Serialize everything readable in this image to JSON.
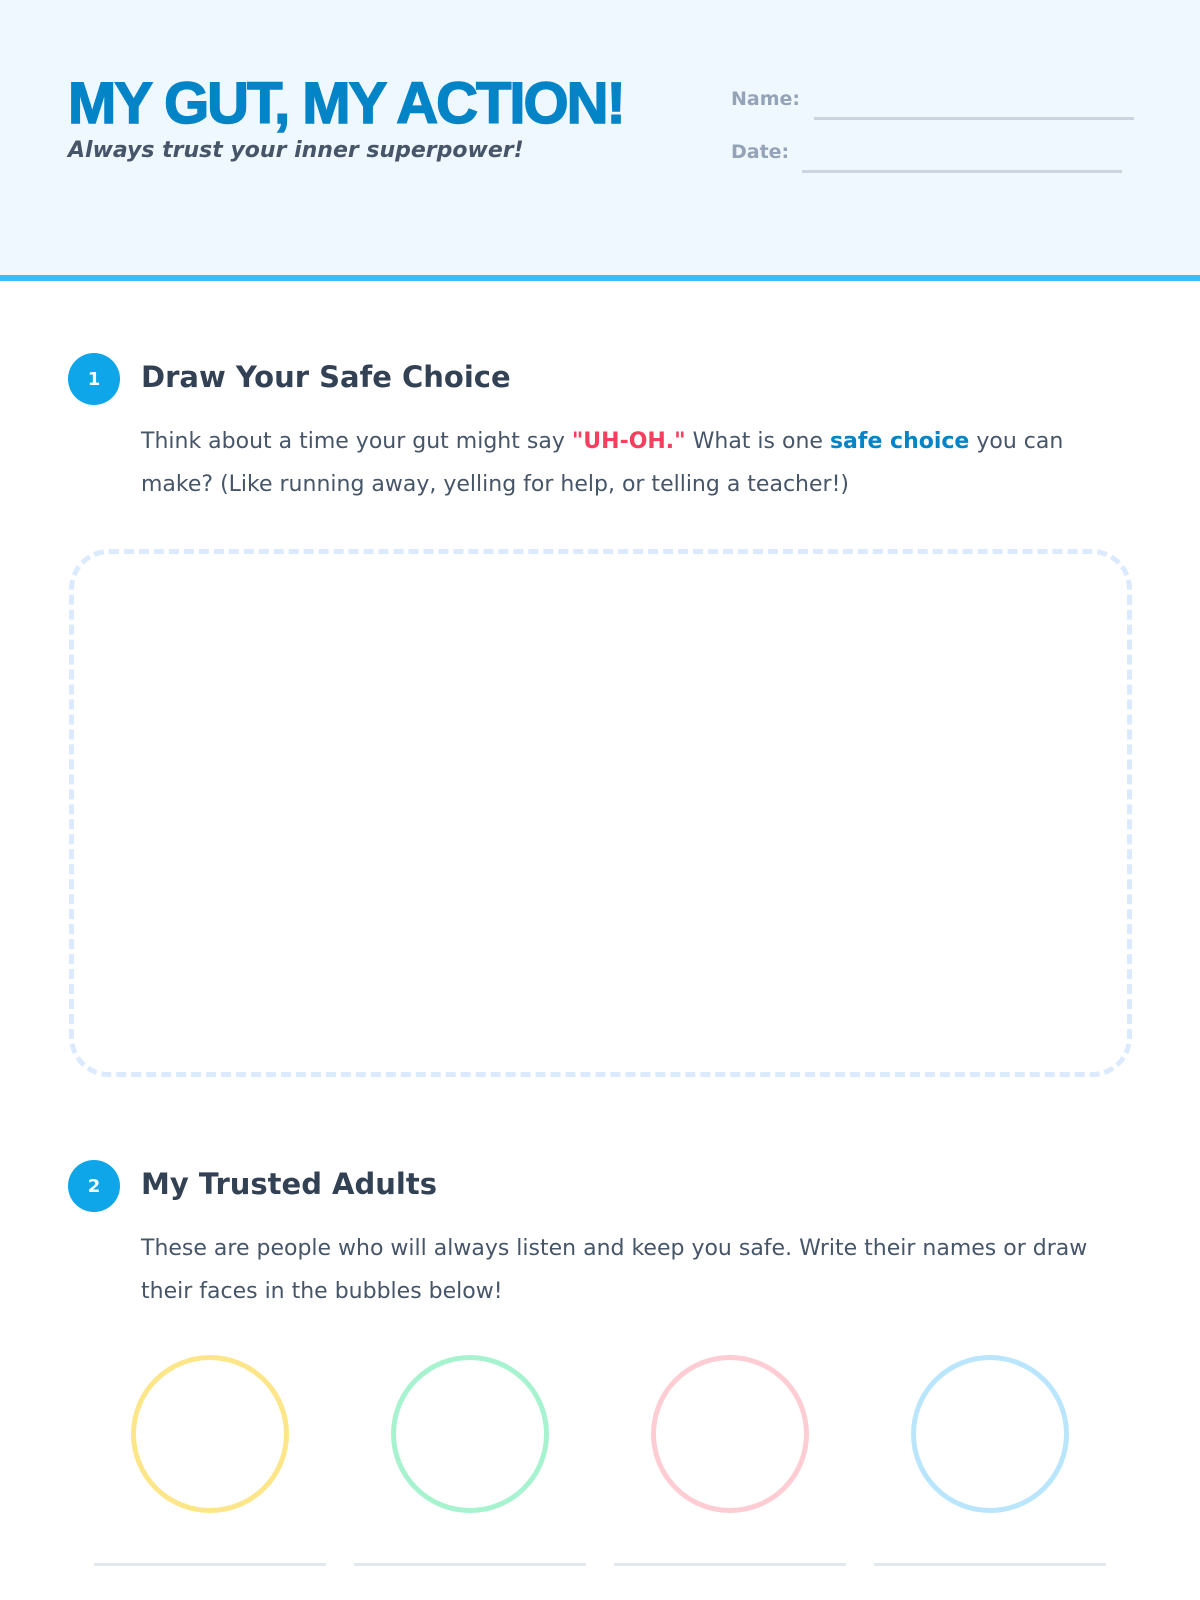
{
  "header": {
    "title": "MY GUT, MY ACTION!",
    "subtitle": "Always trust your inner superpower!",
    "name_label": "Name:",
    "date_label": "Date:"
  },
  "sections": [
    {
      "number": "1",
      "title": "Draw Your Safe Choice",
      "body_1": "Think about a time your gut might say ",
      "highlight_red": "\"UH-OH.\"",
      "body_2": " What is one ",
      "highlight_blue": "safe choice",
      "body_3": " you can make? (Like running away, yelling for help, or telling a teacher!)"
    },
    {
      "number": "2",
      "title": "My Trusted Adults",
      "body": "These are people who will always listen and keep you safe. Write their names or draw their faces in the bubbles below!"
    }
  ],
  "colors": {
    "accent": "#0284c7",
    "bubbles": [
      "#fde68a",
      "#a7f3d0",
      "#fecdd3",
      "#bae6fd"
    ]
  }
}
